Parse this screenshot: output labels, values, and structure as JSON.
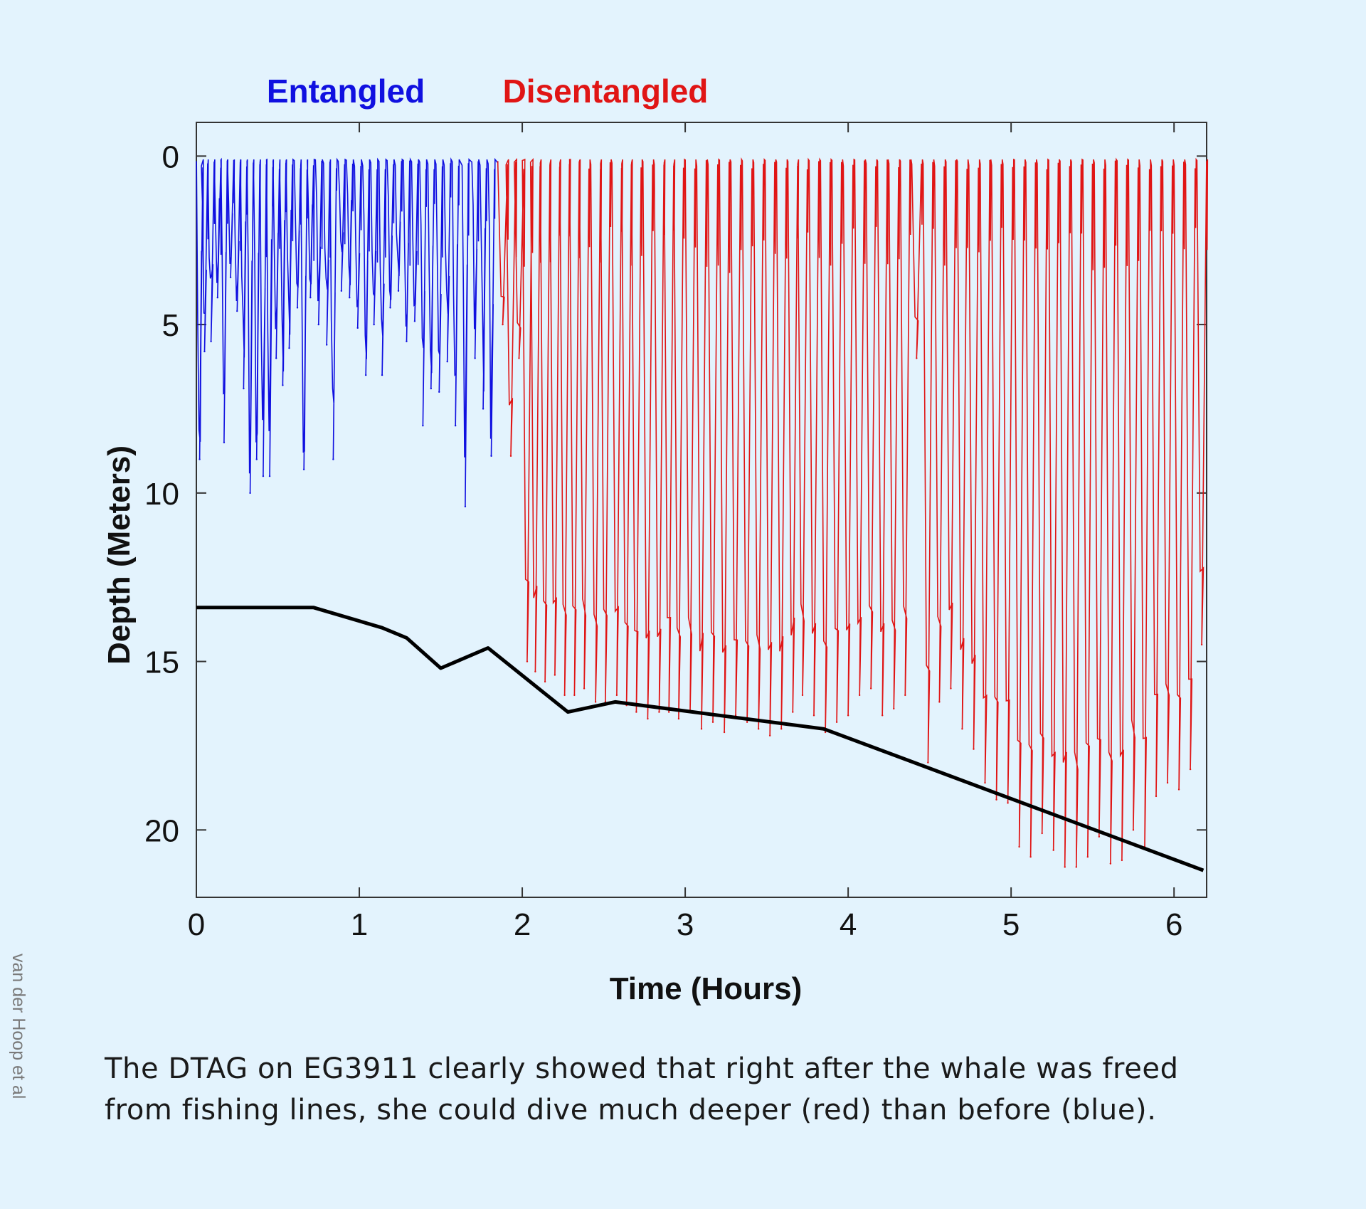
{
  "chart_data": {
    "type": "line",
    "xlabel": "Time (Hours)",
    "ylabel": "Depth (Meters)",
    "xlim": [
      0,
      6.2
    ],
    "ylim": [
      22,
      -1
    ],
    "y_inverted": true,
    "xticks": [
      0,
      1,
      2,
      3,
      4,
      5,
      6
    ],
    "yticks": [
      0,
      5,
      10,
      15,
      20
    ],
    "grid": false,
    "legend": "top-left, above the plot, as colored text",
    "series": [
      {
        "name": "Entangled",
        "color": "#1010e0",
        "style": "dive profile",
        "x_range": [
          0,
          1.85
        ],
        "dives": [
          {
            "t": 0.02,
            "depth": 9.0
          },
          {
            "t": 0.05,
            "depth": 5.8
          },
          {
            "t": 0.09,
            "depth": 5.5
          },
          {
            "t": 0.13,
            "depth": 4.2
          },
          {
            "t": 0.17,
            "depth": 8.5
          },
          {
            "t": 0.21,
            "depth": 3.6
          },
          {
            "t": 0.25,
            "depth": 4.6
          },
          {
            "t": 0.29,
            "depth": 6.9
          },
          {
            "t": 0.33,
            "depth": 10.0
          },
          {
            "t": 0.37,
            "depth": 9.0
          },
          {
            "t": 0.41,
            "depth": 9.5
          },
          {
            "t": 0.45,
            "depth": 9.5
          },
          {
            "t": 0.49,
            "depth": 6.0
          },
          {
            "t": 0.53,
            "depth": 6.8
          },
          {
            "t": 0.57,
            "depth": 5.7
          },
          {
            "t": 0.62,
            "depth": 4.5
          },
          {
            "t": 0.66,
            "depth": 9.3
          },
          {
            "t": 0.7,
            "depth": 4.2
          },
          {
            "t": 0.75,
            "depth": 5.0
          },
          {
            "t": 0.8,
            "depth": 5.6
          },
          {
            "t": 0.84,
            "depth": 9.0
          },
          {
            "t": 0.89,
            "depth": 4.0
          },
          {
            "t": 0.94,
            "depth": 4.2
          },
          {
            "t": 0.99,
            "depth": 5.1
          },
          {
            "t": 1.04,
            "depth": 6.5
          },
          {
            "t": 1.09,
            "depth": 5.0
          },
          {
            "t": 1.14,
            "depth": 6.5
          },
          {
            "t": 1.19,
            "depth": 4.5
          },
          {
            "t": 1.24,
            "depth": 4.0
          },
          {
            "t": 1.29,
            "depth": 5.5
          },
          {
            "t": 1.34,
            "depth": 4.9
          },
          {
            "t": 1.39,
            "depth": 8.0
          },
          {
            "t": 1.44,
            "depth": 6.9
          },
          {
            "t": 1.49,
            "depth": 7.0
          },
          {
            "t": 1.54,
            "depth": 6.1
          },
          {
            "t": 1.59,
            "depth": 8.0
          },
          {
            "t": 1.65,
            "depth": 10.4
          },
          {
            "t": 1.71,
            "depth": 6.0
          },
          {
            "t": 1.76,
            "depth": 7.5
          },
          {
            "t": 1.81,
            "depth": 8.9
          }
        ]
      },
      {
        "name": "Disentangled",
        "color": "#e01515",
        "style": "dive profile",
        "x_range": [
          1.85,
          6.2
        ],
        "dives": [
          {
            "t": 1.88,
            "depth": 5.0
          },
          {
            "t": 1.93,
            "depth": 8.9
          },
          {
            "t": 1.98,
            "depth": 6.0
          },
          {
            "t": 2.03,
            "depth": 15.0
          },
          {
            "t": 2.08,
            "depth": 15.3
          },
          {
            "t": 2.14,
            "depth": 15.6
          },
          {
            "t": 2.2,
            "depth": 15.4
          },
          {
            "t": 2.26,
            "depth": 16.0
          },
          {
            "t": 2.32,
            "depth": 16.0
          },
          {
            "t": 2.38,
            "depth": 15.8
          },
          {
            "t": 2.45,
            "depth": 16.2
          },
          {
            "t": 2.51,
            "depth": 16.2
          },
          {
            "t": 2.58,
            "depth": 16.0
          },
          {
            "t": 2.64,
            "depth": 16.3
          },
          {
            "t": 2.7,
            "depth": 16.5
          },
          {
            "t": 2.77,
            "depth": 16.7
          },
          {
            "t": 2.84,
            "depth": 16.5
          },
          {
            "t": 2.9,
            "depth": 16.5
          },
          {
            "t": 2.96,
            "depth": 16.7
          },
          {
            "t": 3.03,
            "depth": 16.5
          },
          {
            "t": 3.1,
            "depth": 17.0
          },
          {
            "t": 3.17,
            "depth": 16.8
          },
          {
            "t": 3.24,
            "depth": 17.1
          },
          {
            "t": 3.31,
            "depth": 16.6
          },
          {
            "t": 3.38,
            "depth": 16.8
          },
          {
            "t": 3.45,
            "depth": 17.0
          },
          {
            "t": 3.52,
            "depth": 17.2
          },
          {
            "t": 3.59,
            "depth": 17.0
          },
          {
            "t": 3.66,
            "depth": 16.5
          },
          {
            "t": 3.72,
            "depth": 16.0
          },
          {
            "t": 3.79,
            "depth": 16.6
          },
          {
            "t": 3.86,
            "depth": 17.1
          },
          {
            "t": 3.93,
            "depth": 16.8
          },
          {
            "t": 4.0,
            "depth": 16.6
          },
          {
            "t": 4.07,
            "depth": 16.0
          },
          {
            "t": 4.14,
            "depth": 15.8
          },
          {
            "t": 4.21,
            "depth": 16.6
          },
          {
            "t": 4.28,
            "depth": 16.4
          },
          {
            "t": 4.35,
            "depth": 16.0
          },
          {
            "t": 4.42,
            "depth": 6.0
          },
          {
            "t": 4.49,
            "depth": 18.0
          },
          {
            "t": 4.56,
            "depth": 16.2
          },
          {
            "t": 4.63,
            "depth": 15.8
          },
          {
            "t": 4.7,
            "depth": 17.0
          },
          {
            "t": 4.77,
            "depth": 17.6
          },
          {
            "t": 4.84,
            "depth": 18.6
          },
          {
            "t": 4.91,
            "depth": 19.1
          },
          {
            "t": 4.98,
            "depth": 19.2
          },
          {
            "t": 5.05,
            "depth": 20.5
          },
          {
            "t": 5.12,
            "depth": 20.8
          },
          {
            "t": 5.19,
            "depth": 20.1
          },
          {
            "t": 5.26,
            "depth": 20.6
          },
          {
            "t": 5.33,
            "depth": 21.1
          },
          {
            "t": 5.4,
            "depth": 21.1
          },
          {
            "t": 5.47,
            "depth": 20.8
          },
          {
            "t": 5.54,
            "depth": 20.2
          },
          {
            "t": 5.61,
            "depth": 21.0
          },
          {
            "t": 5.68,
            "depth": 20.9
          },
          {
            "t": 5.75,
            "depth": 20.0
          },
          {
            "t": 5.82,
            "depth": 20.5
          },
          {
            "t": 5.89,
            "depth": 19.0
          },
          {
            "t": 5.96,
            "depth": 18.6
          },
          {
            "t": 6.03,
            "depth": 18.8
          },
          {
            "t": 6.1,
            "depth": 18.2
          },
          {
            "t": 6.17,
            "depth": 14.5
          }
        ]
      },
      {
        "name": "",
        "color": "#000000",
        "style": "solid line",
        "x": [
          0,
          0.72,
          1.14,
          1.29,
          1.5,
          1.79,
          2.28,
          2.57,
          3.85,
          6.18
        ],
        "y": [
          13.4,
          13.4,
          14.0,
          14.3,
          15.2,
          14.6,
          16.5,
          16.2,
          17.0,
          21.2
        ]
      }
    ]
  },
  "caption": {
    "line1": "The DTAG on EG3911 clearly showed that right after the whale was freed",
    "line2": "from fishing lines, she could dive much deeper (red) than before (blue)."
  },
  "credit": "van der Hoop et al"
}
